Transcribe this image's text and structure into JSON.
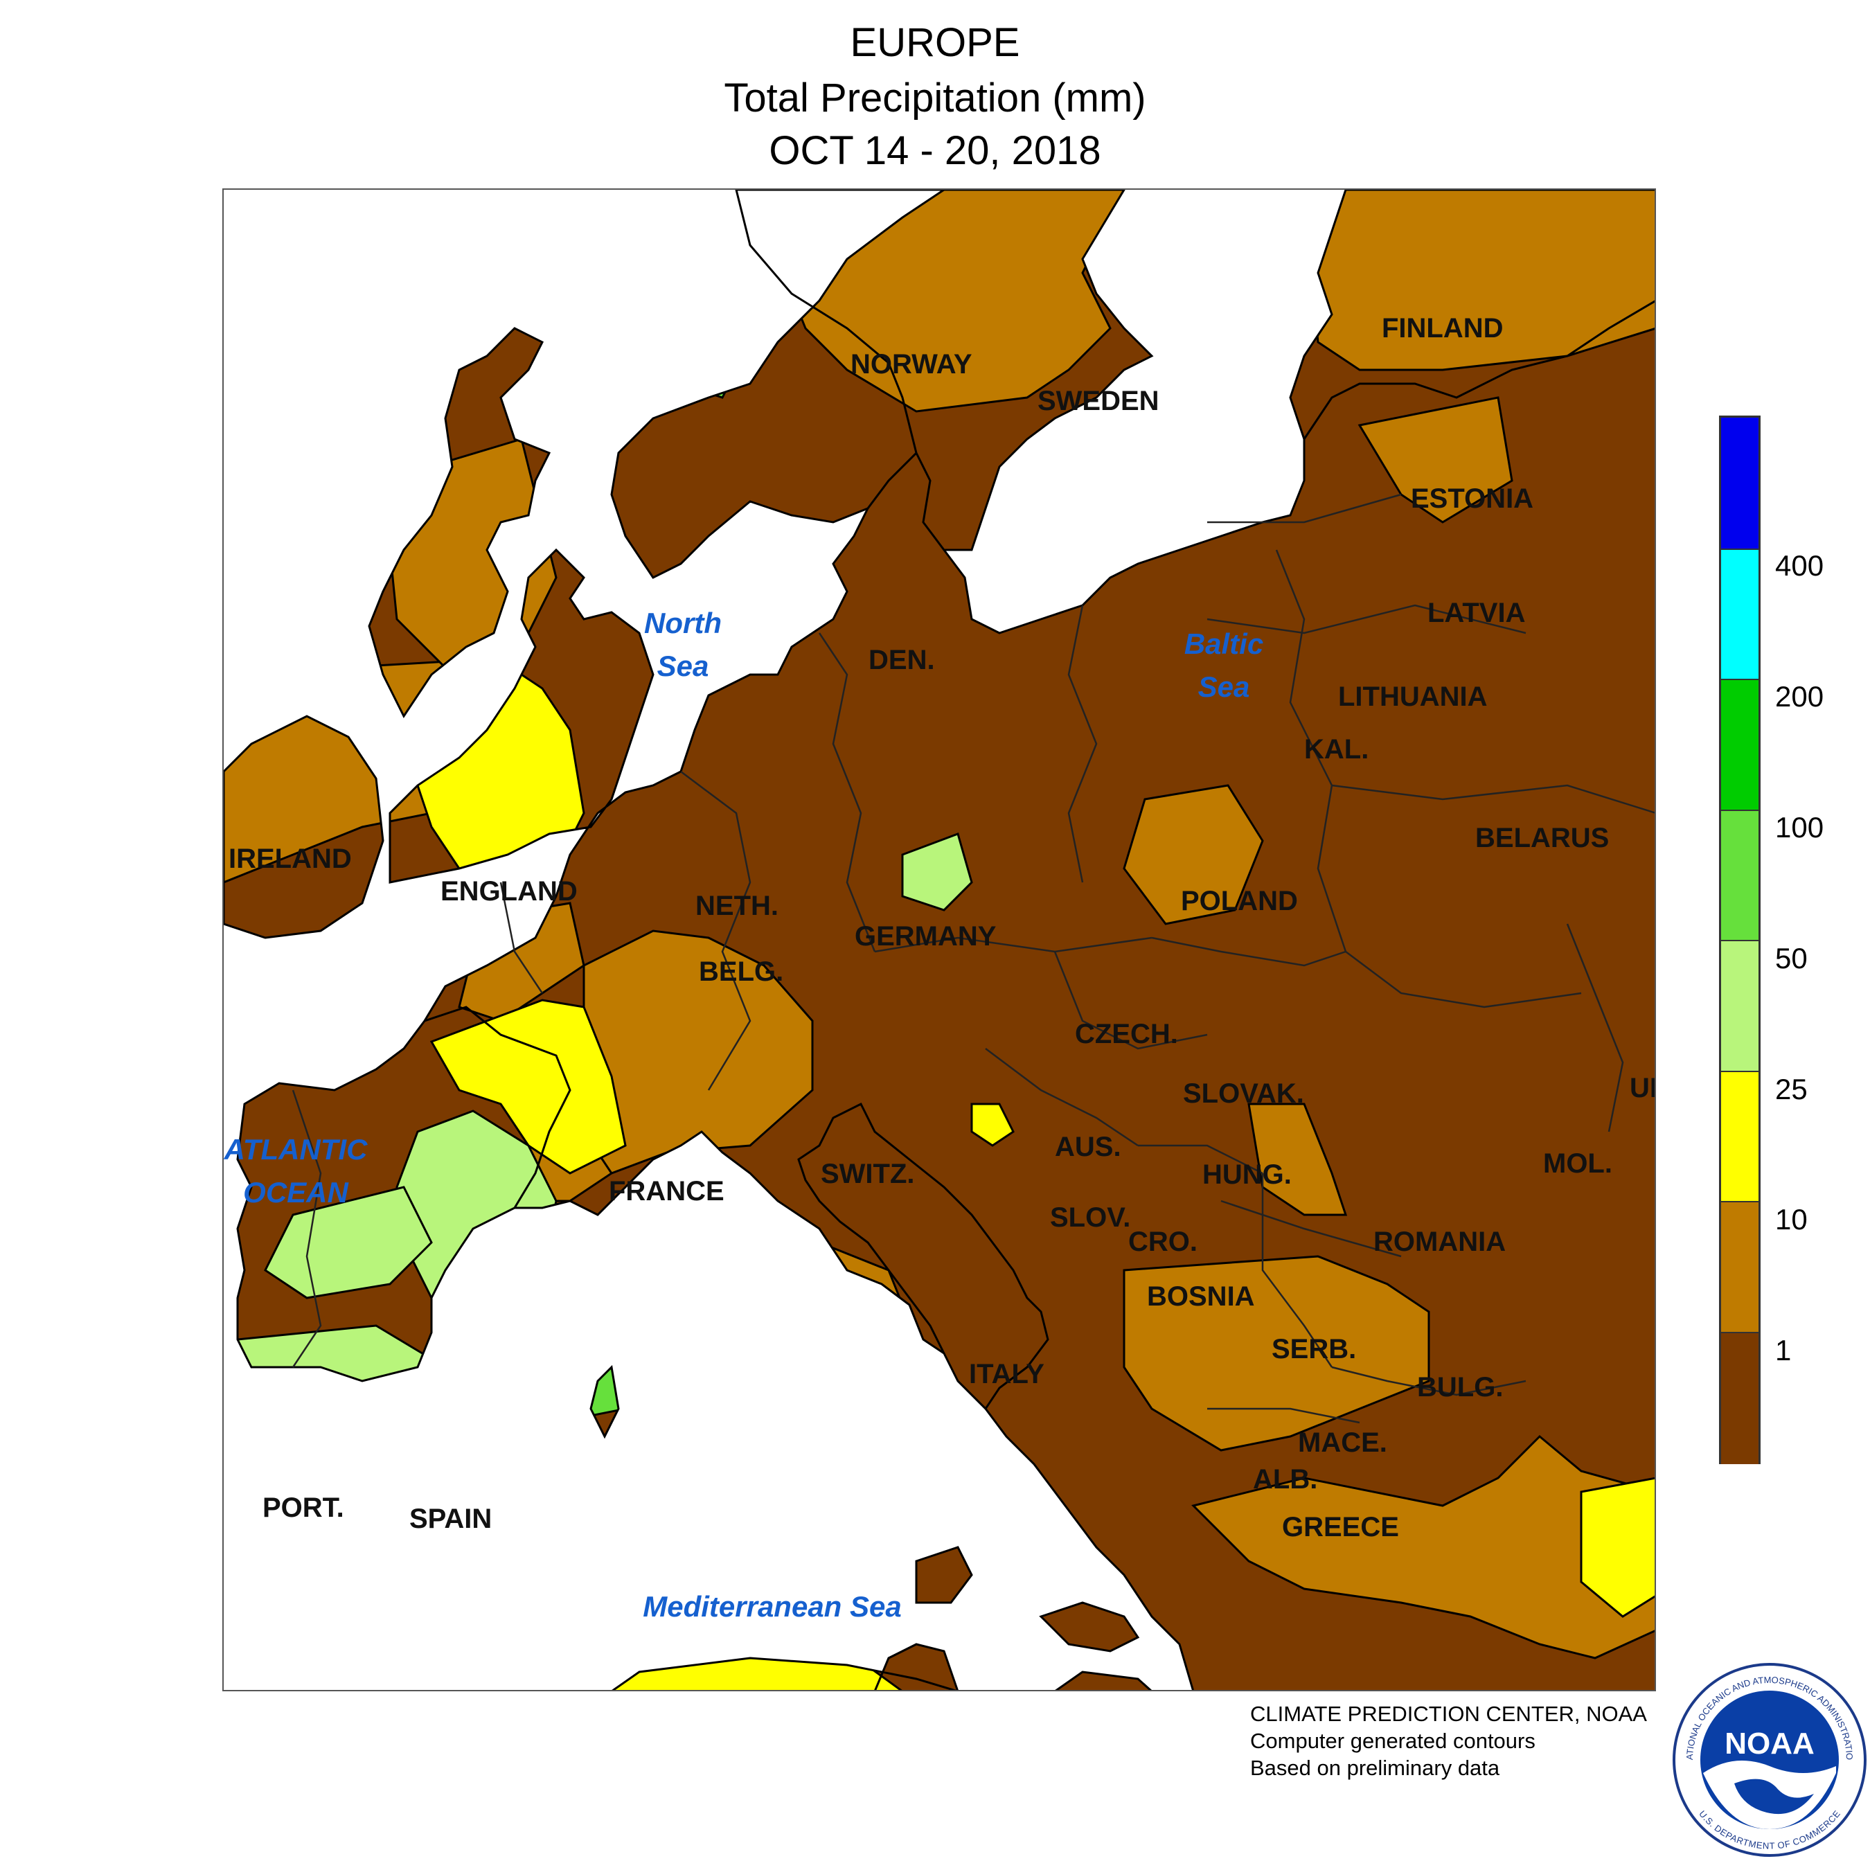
{
  "title": {
    "region": "EUROPE",
    "variable": "Total Precipitation (mm)",
    "period": "OCT 14 - 20, 2018"
  },
  "colors": {
    "ocean": "#ffffff",
    "lt1": "#7b3a00",
    "1_10": "#bf7b00",
    "10_25": "#ffff00",
    "25_50": "#b8f57b",
    "50_100": "#66e03c",
    "100_200": "#00cc00",
    "200_400": "#00ffff",
    "gt400": "#0000ee",
    "water_label": "#1560cf"
  },
  "legend": {
    "thresholds": [
      "1",
      "10",
      "25",
      "50",
      "100",
      "200",
      "400"
    ],
    "bins_top_to_bottom": [
      "#0000ee",
      "#00ffff",
      "#00cc00",
      "#66e03c",
      "#b8f57b",
      "#ffff00",
      "#bf7b00",
      "#7b3a00"
    ]
  },
  "countries": {
    "norway": "NORWAY",
    "sweden": "SWEDEN",
    "finland": "FINLAND",
    "estonia": "ESTONIA",
    "latvia": "LATVIA",
    "lithuania": "LITHUANIA",
    "kal": "KAL.",
    "belarus": "BELARUS",
    "ireland": "IRELAND",
    "england": "ENGLAND",
    "neth": "NETH.",
    "belg": "BELG.",
    "germany": "GERMANY",
    "den": "DEN.",
    "poland": "POLAND",
    "czech": "CZECH.",
    "slovak": "SLOVAK.",
    "aus": "AUS.",
    "hung": "HUNG.",
    "switz": "SWITZ.",
    "france": "FRANCE",
    "slov": "SLOV.",
    "cro": "CRO.",
    "bosnia": "BOSNIA",
    "serb": "SERB.",
    "romania": "ROMANIA",
    "mol": "MOL.",
    "uk": "UK",
    "bulg": "BULG.",
    "mace": "MACE.",
    "alb": "ALB.",
    "greece": "GREECE",
    "italy": "ITALY",
    "port": "PORT.",
    "spain": "SPAIN"
  },
  "water_bodies": {
    "north_sea": [
      "North",
      "Sea"
    ],
    "baltic_sea": [
      "Baltic",
      "Sea"
    ],
    "atlantic": [
      "ATLANTIC",
      "OCEAN"
    ],
    "mediterranean": "Mediterranean Sea"
  },
  "credits": {
    "line1": "CLIMATE PREDICTION CENTER, NOAA",
    "line2": "Computer generated contours",
    "line3": "Based on preliminary data"
  },
  "logo": {
    "text": "NOAA",
    "ring_top": "NATIONAL OCEANIC AND ATMOSPHERIC ADMINISTRATION",
    "ring_bottom": "U.S. DEPARTMENT OF COMMERCE"
  }
}
